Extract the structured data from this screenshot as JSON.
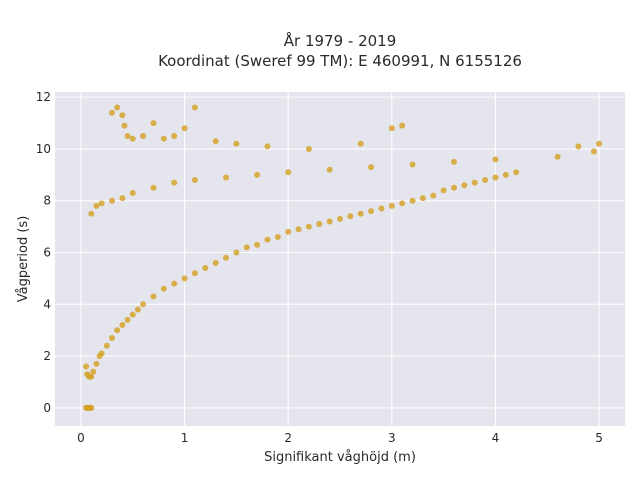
{
  "chart_data": {
    "type": "scatter",
    "title": "År 1979 - 2019",
    "subtitle": "Koordinat (Sweref 99 TM): E 460991, N 6155126",
    "xlabel": "Signifikant våghöjd (m)",
    "ylabel": "Vågperiod (s)",
    "xlim": [
      -0.25,
      5.25
    ],
    "ylim": [
      -0.7,
      12.2
    ],
    "xticks": [
      0,
      1,
      2,
      3,
      4,
      5
    ],
    "yticks": [
      0,
      2,
      4,
      6,
      8,
      10,
      12
    ],
    "xtick_labels": [
      "0",
      "1",
      "2",
      "3",
      "4",
      "5"
    ],
    "ytick_labels": [
      "0",
      "2",
      "4",
      "6",
      "8",
      "10",
      "12"
    ],
    "grid": true,
    "legend": "none",
    "marker_color": "#D4A020",
    "background_color": "#E5E5EE",
    "series": [
      {
        "x": [
          0.05,
          0.06,
          0.07,
          0.08,
          0.09,
          0.1,
          0.05,
          0.06,
          0.08,
          0.1,
          0.12,
          0.15,
          0.18,
          0.2,
          0.25,
          0.3,
          0.35,
          0.4,
          0.45,
          0.5,
          0.55,
          0.6,
          0.7,
          0.8,
          0.9,
          1.0,
          1.1,
          1.2,
          1.3,
          1.4,
          1.5,
          1.6,
          1.7,
          1.8,
          1.9,
          2.0,
          2.1,
          2.2,
          2.3,
          2.4,
          2.5,
          2.6,
          2.7,
          2.8,
          2.9,
          3.0,
          3.1,
          3.2,
          3.3,
          3.4,
          3.5,
          3.6,
          3.7,
          3.8,
          3.9,
          4.0,
          4.1,
          4.2,
          4.6,
          4.8,
          4.95,
          5.0,
          0.3,
          0.35,
          0.4,
          0.42,
          0.45,
          0.5,
          0.6,
          0.7,
          0.8,
          0.9,
          1.0,
          1.1,
          1.3,
          1.5,
          1.8,
          2.2,
          2.7,
          3.0,
          3.1,
          0.1,
          0.15,
          0.2,
          0.3,
          0.4,
          0.5,
          0.7,
          0.9,
          1.1,
          1.4,
          1.7,
          2.0,
          2.4,
          2.8,
          3.2,
          3.6,
          4.0
        ],
        "y": [
          0,
          0,
          0,
          0,
          0,
          0,
          1.6,
          1.3,
          1.2,
          1.2,
          1.4,
          1.7,
          2.0,
          2.1,
          2.4,
          2.7,
          3.0,
          3.2,
          3.4,
          3.6,
          3.8,
          4.0,
          4.3,
          4.6,
          4.8,
          5.0,
          5.2,
          5.4,
          5.6,
          5.8,
          6.0,
          6.2,
          6.3,
          6.5,
          6.6,
          6.8,
          6.9,
          7.0,
          7.1,
          7.2,
          7.3,
          7.4,
          7.5,
          7.6,
          7.7,
          7.8,
          7.9,
          8.0,
          8.1,
          8.2,
          8.4,
          8.5,
          8.6,
          8.7,
          8.8,
          8.9,
          9.0,
          9.1,
          9.7,
          10.1,
          9.9,
          10.2,
          11.4,
          11.6,
          11.3,
          10.9,
          10.5,
          10.4,
          10.5,
          11.0,
          10.4,
          10.5,
          10.8,
          11.6,
          10.3,
          10.2,
          10.1,
          10.0,
          10.2,
          10.8,
          10.9,
          7.5,
          7.8,
          7.9,
          8.0,
          8.1,
          8.3,
          8.5,
          8.7,
          8.8,
          8.9,
          9.0,
          9.1,
          9.2,
          9.3,
          9.4,
          9.5,
          9.6
        ]
      }
    ]
  }
}
